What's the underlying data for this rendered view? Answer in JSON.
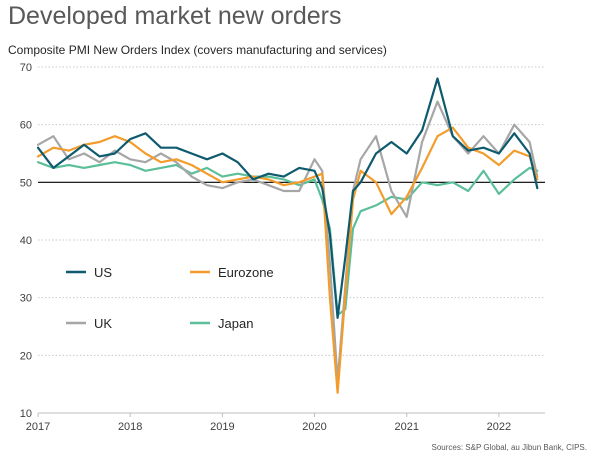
{
  "title": "Developed market new orders",
  "subtitle": "Composite PMI New Orders Index (covers manufacturing and services)",
  "source": "Sources: S&P Global, au Jibun Bank, CIPS.",
  "chart_data": {
    "type": "line",
    "x_tick_labels": [
      "2017",
      "2018",
      "2019",
      "2020",
      "2021",
      "2022"
    ],
    "y_tick_labels": [
      "10",
      "20",
      "30",
      "40",
      "50",
      "60",
      "70"
    ],
    "ylim": [
      10,
      70
    ],
    "x_range": [
      "2017-01",
      "2022-07"
    ],
    "reference_line": 50,
    "grid": "horizontal, dotted",
    "legend_placement": "inside lower-left",
    "series": [
      {
        "name": "US",
        "color": "#0e5a6e",
        "x": [
          "2017-01",
          "2017-03",
          "2017-05",
          "2017-07",
          "2017-09",
          "2017-11",
          "2018-01",
          "2018-03",
          "2018-05",
          "2018-07",
          "2018-09",
          "2018-11",
          "2019-01",
          "2019-03",
          "2019-05",
          "2019-07",
          "2019-09",
          "2019-11",
          "2020-01",
          "2020-02",
          "2020-03",
          "2020-04",
          "2020-05",
          "2020-06",
          "2020-07",
          "2020-09",
          "2020-11",
          "2021-01",
          "2021-03",
          "2021-05",
          "2021-07",
          "2021-09",
          "2021-11",
          "2022-01",
          "2022-03",
          "2022-05",
          "2022-06"
        ],
        "values": [
          56.0,
          52.5,
          54.5,
          56.5,
          54.5,
          55.0,
          57.5,
          58.5,
          56.0,
          56.0,
          55.0,
          54.0,
          55.0,
          53.5,
          50.5,
          51.5,
          51.0,
          52.5,
          52.0,
          49.0,
          41.0,
          26.5,
          37.0,
          48.5,
          50.0,
          55.0,
          57.0,
          55.0,
          59.0,
          68.0,
          58.0,
          55.5,
          56.0,
          55.0,
          58.5,
          55.0,
          49.0
        ]
      },
      {
        "name": "Eurozone",
        "color": "#f39c2b",
        "x": [
          "2017-01",
          "2017-03",
          "2017-05",
          "2017-07",
          "2017-09",
          "2017-11",
          "2018-01",
          "2018-03",
          "2018-05",
          "2018-07",
          "2018-09",
          "2018-11",
          "2019-01",
          "2019-03",
          "2019-05",
          "2019-07",
          "2019-09",
          "2019-11",
          "2020-01",
          "2020-02",
          "2020-03",
          "2020-04",
          "2020-05",
          "2020-06",
          "2020-07",
          "2020-09",
          "2020-11",
          "2021-01",
          "2021-03",
          "2021-05",
          "2021-07",
          "2021-09",
          "2021-11",
          "2022-01",
          "2022-03",
          "2022-05",
          "2022-06"
        ],
        "values": [
          54.5,
          56.0,
          55.5,
          56.5,
          57.0,
          58.0,
          57.0,
          55.0,
          53.5,
          54.0,
          53.0,
          51.5,
          50.0,
          50.5,
          51.0,
          50.5,
          49.5,
          50.0,
          51.0,
          51.5,
          30.0,
          13.5,
          30.5,
          47.0,
          52.0,
          50.0,
          44.5,
          47.5,
          52.5,
          58.0,
          59.5,
          56.0,
          55.0,
          53.0,
          55.5,
          54.5,
          50.5
        ]
      },
      {
        "name": "UK",
        "color": "#a6a6a6",
        "x": [
          "2017-01",
          "2017-03",
          "2017-05",
          "2017-07",
          "2017-09",
          "2017-11",
          "2018-01",
          "2018-03",
          "2018-05",
          "2018-07",
          "2018-09",
          "2018-11",
          "2019-01",
          "2019-03",
          "2019-05",
          "2019-07",
          "2019-09",
          "2019-11",
          "2020-01",
          "2020-02",
          "2020-03",
          "2020-04",
          "2020-05",
          "2020-06",
          "2020-07",
          "2020-09",
          "2020-11",
          "2021-01",
          "2021-03",
          "2021-05",
          "2021-07",
          "2021-09",
          "2021-11",
          "2022-01",
          "2022-03",
          "2022-05",
          "2022-06"
        ],
        "values": [
          56.5,
          58.0,
          54.0,
          55.0,
          53.5,
          55.5,
          54.0,
          53.5,
          55.0,
          53.5,
          51.0,
          49.5,
          49.0,
          50.0,
          50.5,
          49.5,
          48.5,
          48.5,
          54.0,
          52.0,
          36.0,
          15.5,
          32.0,
          48.5,
          54.0,
          58.0,
          48.5,
          44.0,
          57.0,
          64.0,
          58.0,
          55.0,
          58.0,
          55.0,
          60.0,
          57.0,
          51.0
        ]
      },
      {
        "name": "Japan",
        "color": "#5cbf9a",
        "x": [
          "2017-01",
          "2017-03",
          "2017-05",
          "2017-07",
          "2017-09",
          "2017-11",
          "2018-01",
          "2018-03",
          "2018-05",
          "2018-07",
          "2018-09",
          "2018-11",
          "2019-01",
          "2019-03",
          "2019-05",
          "2019-07",
          "2019-09",
          "2019-11",
          "2020-01",
          "2020-02",
          "2020-03",
          "2020-04",
          "2020-05",
          "2020-06",
          "2020-07",
          "2020-09",
          "2020-11",
          "2021-01",
          "2021-03",
          "2021-05",
          "2021-07",
          "2021-09",
          "2021-11",
          "2022-01",
          "2022-03",
          "2022-05",
          "2022-06"
        ],
        "values": [
          53.5,
          52.5,
          53.0,
          52.5,
          53.0,
          53.5,
          53.0,
          52.0,
          52.5,
          53.0,
          51.5,
          52.5,
          51.0,
          51.5,
          51.0,
          51.0,
          50.5,
          49.5,
          50.5,
          47.0,
          42.0,
          27.0,
          28.0,
          42.0,
          45.0,
          46.0,
          47.5,
          47.0,
          50.0,
          49.5,
          50.0,
          48.5,
          52.0,
          48.0,
          50.5,
          52.5,
          52.0
        ]
      }
    ]
  }
}
